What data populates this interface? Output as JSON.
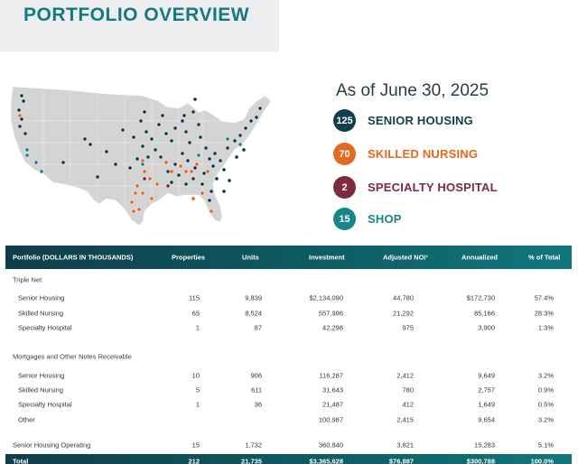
{
  "header": {
    "title": "PORTFOLIO OVERVIEW"
  },
  "summary": {
    "as_of": "As of June 30, 2025",
    "legend": [
      {
        "count": "125",
        "label": "SENIOR HOUSING",
        "color": "#123f4c"
      },
      {
        "count": "70",
        "label": "SKILLED NURSING",
        "color": "#e26a23"
      },
      {
        "count": "2",
        "label": "SPECIALTY HOSPITAL",
        "color": "#7d2c3d"
      },
      {
        "count": "15",
        "label": "SHOP",
        "color": "#17858a"
      }
    ]
  },
  "table": {
    "headers": [
      "Portfolio  (DOLLARS IN THOUSANDS)",
      "Properties",
      "Units",
      "Investment",
      "Adjusted NOI¹",
      "Annualized",
      "% of Total"
    ],
    "sections": {
      "triple_net": "Triple Net",
      "mortgages": "Mortgages and Other Notes Receivable"
    },
    "triple_net_rows": [
      [
        "Senior Housing",
        "115",
        "9,839",
        "$2,134,090",
        "44,780",
        "$172,730",
        "57.4%"
      ],
      [
        "Skilled Nursing",
        "65",
        "8,524",
        "557,996",
        "21,292",
        "85,166",
        "28.3%"
      ],
      [
        "Specialty Hospital",
        "1",
        "87",
        "42,298",
        "975",
        "3,900",
        "1.3%"
      ]
    ],
    "mortgage_rows": [
      [
        "Senior Housing",
        "10",
        "906",
        "116,287",
        "2,412",
        "9,649",
        "3.2%"
      ],
      [
        "Skilled Nursing",
        "5",
        "611",
        "31,643",
        "780",
        "2,757",
        "0.9%"
      ],
      [
        "Specialty Hospital",
        "1",
        "36",
        "21,487",
        "412",
        "1,649",
        "0.5%"
      ],
      [
        "Other",
        "",
        "",
        "100,987",
        "2,415",
        "9,654",
        "3.2%"
      ]
    ],
    "shop_row": [
      "Senior Housing Operating",
      "15",
      "1,732",
      "360,840",
      "3,821",
      "15,283",
      "5.1%"
    ],
    "total_row": [
      "Total",
      "212",
      "21,735",
      "$3,365,628",
      "$76,887",
      "$300,788",
      "100.0%"
    ]
  }
}
